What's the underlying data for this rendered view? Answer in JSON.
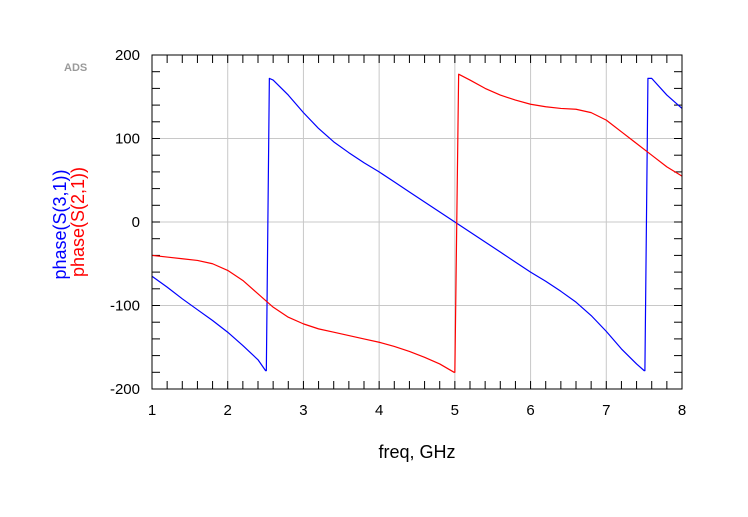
{
  "watermark": "ADS",
  "chart_data": {
    "type": "line",
    "title": "",
    "xlabel": "freq, GHz",
    "xlim": [
      1,
      8
    ],
    "ylim": [
      -200,
      200
    ],
    "x_ticks": [
      1,
      2,
      3,
      4,
      5,
      6,
      7,
      8
    ],
    "x_tick_labels": [
      "1",
      "2",
      "3",
      "4",
      "5",
      "6",
      "7",
      "8"
    ],
    "y_ticks": [
      -200,
      -100,
      0,
      100,
      200
    ],
    "y_tick_labels": [
      "-200",
      "-100",
      "0",
      "100",
      "200"
    ],
    "x_minor_step": 0.2,
    "y_minor_step": 20,
    "grid": true,
    "ylabels": [
      {
        "text": "phase(S(3,1))",
        "color": "#0000ff"
      },
      {
        "text": "phase(S(2,1))",
        "color": "#ff0000"
      }
    ],
    "series": [
      {
        "name": "phase(S(3,1))",
        "color": "#0000ff",
        "x": [
          1.0,
          1.2,
          1.4,
          1.6,
          1.8,
          2.0,
          2.2,
          2.4,
          2.5,
          2.51,
          2.55,
          2.6,
          2.8,
          3.0,
          3.2,
          3.4,
          3.6,
          3.8,
          4.0,
          4.2,
          4.4,
          4.6,
          4.8,
          5.0,
          5.2,
          5.4,
          5.6,
          5.8,
          6.0,
          6.2,
          6.4,
          6.6,
          6.8,
          7.0,
          7.2,
          7.4,
          7.5,
          7.51,
          7.55,
          7.6,
          7.8,
          8.0
        ],
        "y": [
          -65,
          -78,
          -92,
          -105,
          -118,
          -132,
          -148,
          -165,
          -178,
          -178,
          172,
          170,
          152,
          131,
          112,
          96,
          83,
          71,
          60,
          48,
          36,
          24,
          12,
          0,
          -12,
          -24,
          -36,
          -48,
          -60,
          -71,
          -83,
          -96,
          -112,
          -131,
          -152,
          -170,
          -178,
          -178,
          172,
          172,
          152,
          136
        ]
      },
      {
        "name": "phase(S(2,1))",
        "color": "#ff0000",
        "x": [
          1.0,
          1.2,
          1.4,
          1.6,
          1.8,
          2.0,
          2.2,
          2.4,
          2.6,
          2.8,
          3.0,
          3.2,
          3.4,
          3.6,
          3.8,
          4.0,
          4.2,
          4.4,
          4.6,
          4.8,
          4.99,
          5.0,
          5.05,
          5.2,
          5.4,
          5.6,
          5.8,
          6.0,
          6.2,
          6.4,
          6.6,
          6.8,
          7.0,
          7.2,
          7.4,
          7.6,
          7.8,
          8.0
        ],
        "y": [
          -40,
          -42,
          -44,
          -46,
          -50,
          -58,
          -70,
          -86,
          -102,
          -114,
          -122,
          -128,
          -132,
          -136,
          -140,
          -144,
          -149,
          -155,
          -162,
          -170,
          -180,
          -180,
          177,
          170,
          160,
          152,
          146,
          141,
          138,
          136,
          135,
          131,
          122,
          108,
          94,
          80,
          66,
          55
        ]
      }
    ]
  }
}
